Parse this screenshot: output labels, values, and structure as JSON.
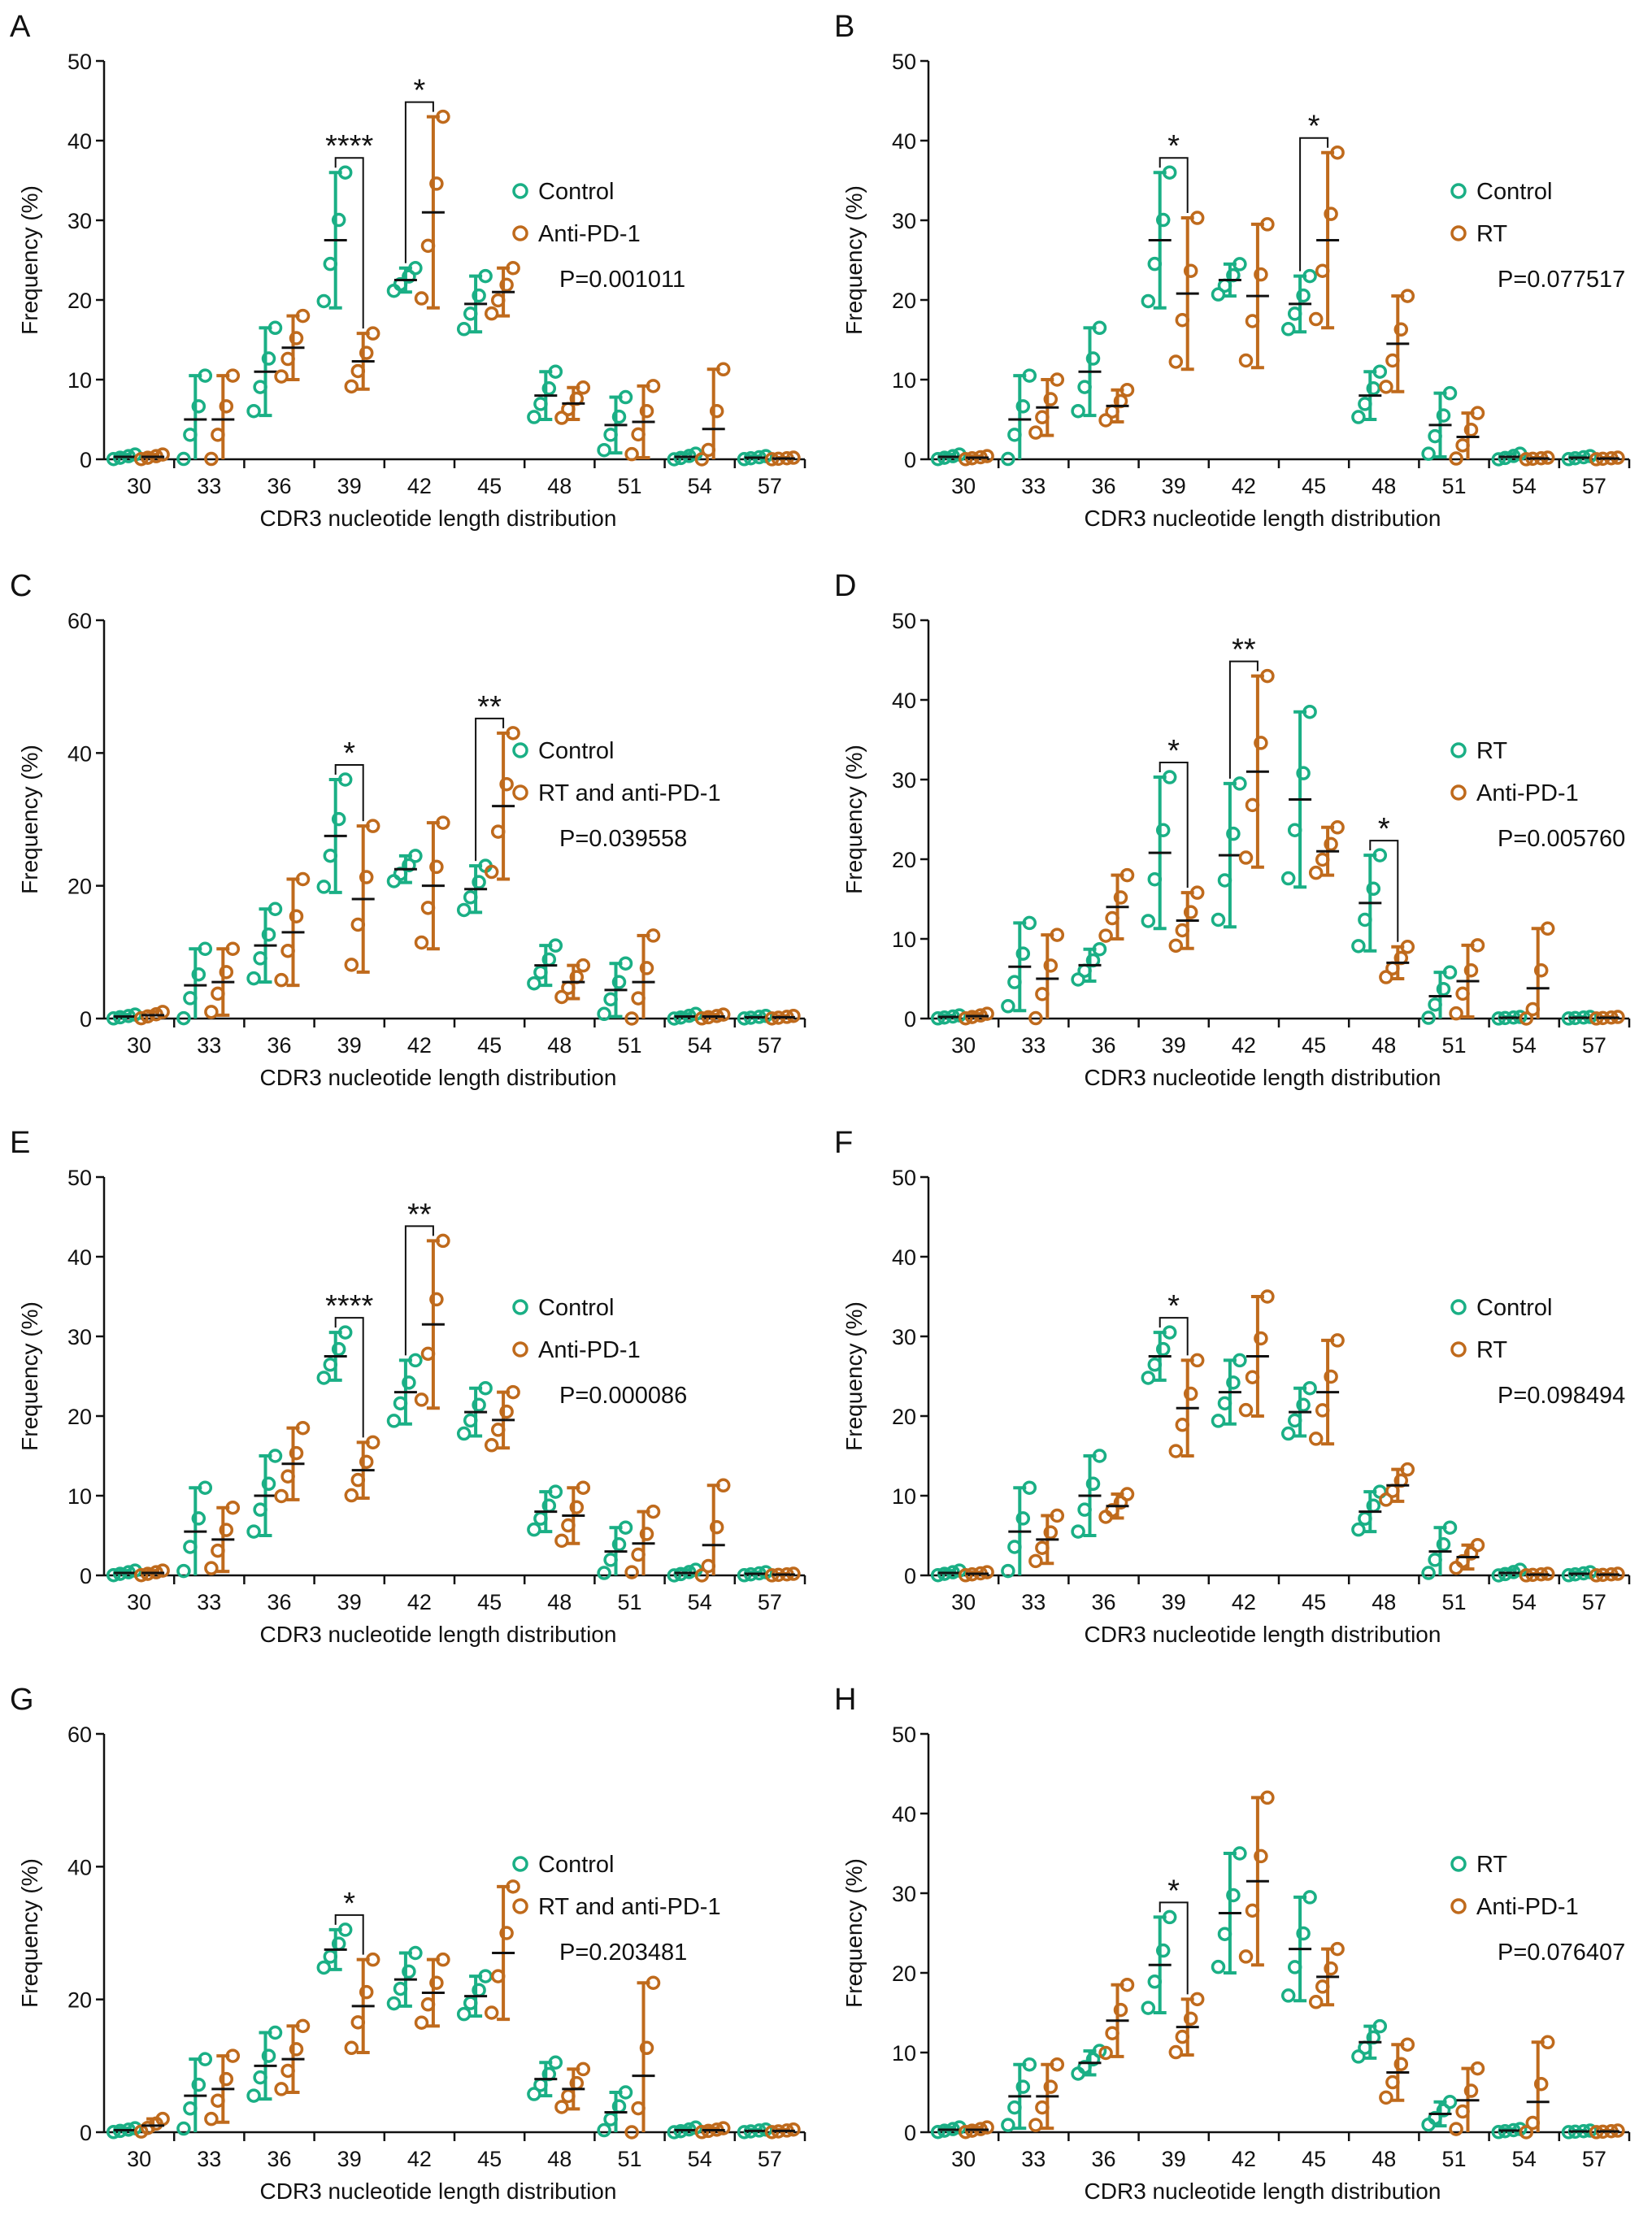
{
  "figure": {
    "colors": {
      "control": "#1aaf85",
      "treated": "#bf6a1c",
      "axis": "#111111"
    },
    "common": {
      "type": "scatter",
      "xlabel": "CDR3 nucleotide length distribution",
      "ylabel": "Frequency (%)",
      "x_ticks": [
        "30",
        "33",
        "36",
        "39",
        "42",
        "45",
        "48",
        "51",
        "54",
        "57"
      ]
    }
  },
  "chart_data": [
    {
      "panel": "A",
      "type": "scatter",
      "ylim": [
        0,
        50
      ],
      "yticks": [
        "0",
        "10",
        "20",
        "30",
        "40",
        "50"
      ],
      "legend": [
        "Control",
        "Anti-PD-1"
      ],
      "pvalue": "P=0.001011",
      "series": [
        {
          "name": "Control",
          "values": [
            0.3,
            5.0,
            11.0,
            27.5,
            22.5,
            19.5,
            8.0,
            4.3,
            0.3,
            0.2
          ],
          "sd": [
            0.3,
            5.5,
            5.5,
            8.5,
            1.5,
            3.5,
            3.0,
            3.5,
            0.4,
            0.2
          ]
        },
        {
          "name": "Anti-PD-1",
          "values": [
            0.3,
            5.0,
            14.0,
            12.3,
            31.0,
            21.0,
            7.0,
            4.7,
            3.8,
            0.1
          ],
          "sd": [
            0.3,
            5.5,
            4.0,
            3.5,
            12.0,
            3.0,
            2.0,
            4.5,
            7.5,
            0.1
          ]
        }
      ],
      "significance": [
        {
          "index": 3,
          "label": "****"
        },
        {
          "index": 4,
          "label": "*"
        }
      ]
    },
    {
      "panel": "B",
      "type": "scatter",
      "ylim": [
        0,
        50
      ],
      "yticks": [
        "0",
        "10",
        "20",
        "30",
        "40",
        "50"
      ],
      "legend": [
        "Control",
        "RT"
      ],
      "pvalue": "P=0.077517",
      "series": [
        {
          "name": "Control",
          "values": [
            0.3,
            5.0,
            11.0,
            27.5,
            22.5,
            19.5,
            8.0,
            4.3,
            0.3,
            0.2
          ],
          "sd": [
            0.3,
            5.5,
            5.5,
            8.5,
            2.0,
            3.5,
            3.0,
            4.0,
            0.4,
            0.2
          ]
        },
        {
          "name": "RT",
          "values": [
            0.2,
            6.5,
            6.7,
            20.8,
            20.5,
            27.5,
            14.5,
            2.8,
            0.1,
            0.1
          ],
          "sd": [
            0.2,
            3.5,
            2.0,
            9.5,
            9.0,
            11.0,
            6.0,
            3.0,
            0.1,
            0.1
          ]
        }
      ],
      "significance": [
        {
          "index": 3,
          "label": "*"
        },
        {
          "index": 5,
          "label": "*"
        }
      ]
    },
    {
      "panel": "C",
      "type": "scatter",
      "ylim": [
        0,
        60
      ],
      "yticks": [
        "0",
        "20",
        "40",
        "60"
      ],
      "legend": [
        "Control",
        "RT and anti-PD-1"
      ],
      "pvalue": "P=0.039558",
      "series": [
        {
          "name": "Control",
          "values": [
            0.3,
            5.0,
            11.0,
            27.5,
            22.5,
            19.5,
            8.0,
            4.3,
            0.3,
            0.2
          ],
          "sd": [
            0.3,
            5.5,
            5.5,
            8.5,
            2.0,
            3.5,
            3.0,
            4.0,
            0.4,
            0.2
          ]
        },
        {
          "name": "RT and anti-PD-1",
          "values": [
            0.5,
            5.5,
            13.0,
            18.0,
            20.0,
            32.0,
            5.5,
            5.5,
            0.3,
            0.2
          ],
          "sd": [
            0.5,
            5.0,
            8.0,
            11.0,
            9.5,
            11.0,
            2.5,
            7.0,
            0.3,
            0.2
          ]
        }
      ],
      "significance": [
        {
          "index": 3,
          "label": "*"
        },
        {
          "index": 5,
          "label": "**"
        }
      ]
    },
    {
      "panel": "D",
      "type": "scatter",
      "ylim": [
        0,
        50
      ],
      "yticks": [
        "0",
        "10",
        "20",
        "30",
        "40",
        "50"
      ],
      "legend": [
        "RT",
        "Anti-PD-1"
      ],
      "pvalue": "P=0.005760",
      "series": [
        {
          "name": "RT",
          "values": [
            0.2,
            6.5,
            6.7,
            20.8,
            20.5,
            27.5,
            14.5,
            2.8,
            0.1,
            0.1
          ],
          "sd": [
            0.2,
            5.5,
            2.0,
            9.5,
            9.0,
            11.0,
            6.0,
            3.0,
            0.1,
            0.1
          ]
        },
        {
          "name": "Anti-PD-1",
          "values": [
            0.3,
            5.0,
            14.0,
            12.3,
            31.0,
            21.0,
            7.0,
            4.7,
            3.8,
            0.1
          ],
          "sd": [
            0.3,
            5.5,
            4.0,
            3.5,
            12.0,
            3.0,
            2.0,
            4.5,
            7.5,
            0.1
          ]
        }
      ],
      "significance": [
        {
          "index": 3,
          "label": "*"
        },
        {
          "index": 4,
          "label": "**"
        },
        {
          "index": 6,
          "label": "*"
        }
      ]
    },
    {
      "panel": "E",
      "type": "scatter",
      "ylim": [
        0,
        50
      ],
      "yticks": [
        "0",
        "10",
        "20",
        "30",
        "40",
        "50"
      ],
      "legend": [
        "Control",
        "Anti-PD-1"
      ],
      "pvalue": "P=0.000086",
      "series": [
        {
          "name": "Control",
          "values": [
            0.3,
            5.5,
            10.0,
            27.5,
            23.0,
            20.5,
            8.0,
            3.0,
            0.3,
            0.2
          ],
          "sd": [
            0.3,
            5.5,
            5.0,
            3.0,
            4.0,
            3.0,
            2.5,
            3.0,
            0.4,
            0.2
          ]
        },
        {
          "name": "Anti-PD-1",
          "values": [
            0.3,
            4.5,
            14.0,
            13.2,
            31.5,
            19.5,
            7.5,
            4.0,
            3.8,
            0.1
          ],
          "sd": [
            0.3,
            4.0,
            4.5,
            3.5,
            10.5,
            3.5,
            3.5,
            4.0,
            7.5,
            0.1
          ]
        }
      ],
      "significance": [
        {
          "index": 3,
          "label": "****"
        },
        {
          "index": 4,
          "label": "**"
        }
      ]
    },
    {
      "panel": "F",
      "type": "scatter",
      "ylim": [
        0,
        50
      ],
      "yticks": [
        "0",
        "10",
        "20",
        "30",
        "40",
        "50"
      ],
      "legend": [
        "Control",
        "RT"
      ],
      "pvalue": "P=0.098494",
      "series": [
        {
          "name": "Control",
          "values": [
            0.3,
            5.5,
            10.0,
            27.5,
            23.0,
            20.5,
            8.0,
            3.0,
            0.3,
            0.2
          ],
          "sd": [
            0.3,
            5.5,
            5.0,
            3.0,
            4.0,
            3.0,
            2.5,
            3.0,
            0.4,
            0.2
          ]
        },
        {
          "name": "RT",
          "values": [
            0.2,
            4.5,
            8.7,
            21.0,
            27.5,
            23.0,
            11.3,
            2.3,
            0.1,
            0.1
          ],
          "sd": [
            0.2,
            3.0,
            1.5,
            6.0,
            7.5,
            6.5,
            2.0,
            1.5,
            0.1,
            0.1
          ]
        }
      ],
      "significance": [
        {
          "index": 3,
          "label": "*"
        }
      ]
    },
    {
      "panel": "G",
      "type": "scatter",
      "ylim": [
        0,
        60
      ],
      "yticks": [
        "0",
        "20",
        "40",
        "60"
      ],
      "legend": [
        "Control",
        "RT and anti-PD-1"
      ],
      "pvalue": "P=0.203481",
      "series": [
        {
          "name": "Control",
          "values": [
            0.3,
            5.5,
            10.0,
            27.5,
            23.0,
            20.5,
            8.0,
            3.0,
            0.3,
            0.2
          ],
          "sd": [
            0.3,
            5.5,
            5.0,
            3.0,
            4.0,
            3.0,
            2.5,
            3.0,
            0.4,
            0.2
          ]
        },
        {
          "name": "RT and anti-PD-1",
          "values": [
            1.0,
            6.5,
            11.0,
            19.0,
            21.0,
            27.0,
            6.5,
            8.5,
            0.3,
            0.2
          ],
          "sd": [
            1.0,
            5.0,
            5.0,
            7.0,
            5.0,
            10.0,
            3.0,
            14.0,
            0.3,
            0.2
          ]
        }
      ],
      "significance": [
        {
          "index": 3,
          "label": "*"
        }
      ]
    },
    {
      "panel": "H",
      "type": "scatter",
      "ylim": [
        0,
        50
      ],
      "yticks": [
        "0",
        "10",
        "20",
        "30",
        "40",
        "50"
      ],
      "legend": [
        "RT",
        "Anti-PD-1"
      ],
      "pvalue": "P=0.076407",
      "series": [
        {
          "name": "RT",
          "values": [
            0.3,
            4.5,
            8.7,
            21.0,
            27.5,
            23.0,
            11.3,
            2.3,
            0.2,
            0.1
          ],
          "sd": [
            0.3,
            4.0,
            1.5,
            6.0,
            7.5,
            6.5,
            2.0,
            1.5,
            0.2,
            0.1
          ]
        },
        {
          "name": "Anti-PD-1",
          "values": [
            0.3,
            4.5,
            14.0,
            13.2,
            31.5,
            19.5,
            7.5,
            4.0,
            3.8,
            0.1
          ],
          "sd": [
            0.3,
            4.0,
            4.5,
            3.5,
            10.5,
            3.5,
            3.5,
            4.0,
            7.5,
            0.1
          ]
        }
      ],
      "significance": [
        {
          "index": 3,
          "label": "*"
        }
      ]
    }
  ]
}
